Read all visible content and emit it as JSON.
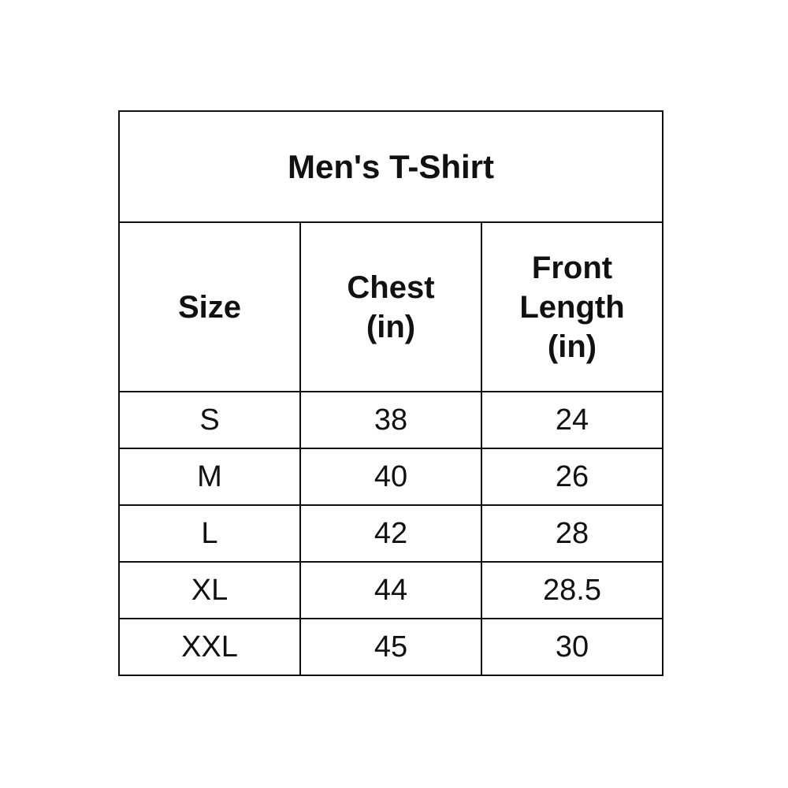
{
  "title": "Men's T-Shirt",
  "headers": [
    "Size",
    "Chest\n(in)",
    "Front\nLength\n(in)"
  ],
  "rows": [
    [
      "S",
      "38",
      "24"
    ],
    [
      "M",
      "40",
      "26"
    ],
    [
      "L",
      "42",
      "28"
    ],
    [
      "XL",
      "44",
      "28.5"
    ],
    [
      "XXL",
      "45",
      "30"
    ]
  ]
}
